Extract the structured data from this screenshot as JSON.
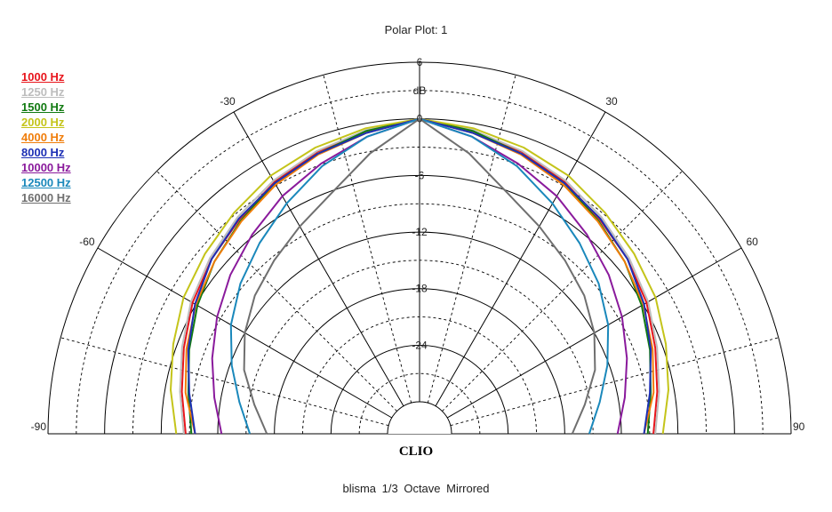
{
  "title": "Polar Plot: 1",
  "brand": "CLIO",
  "footer": "blisma   1/3 Octave   Mirrored",
  "chart_data": {
    "type": "polar",
    "title": "Polar Plot: 1",
    "r_unit": "dB",
    "r_ticks": [
      6,
      0,
      -6,
      -12,
      -18,
      -24
    ],
    "r_range": [
      -30,
      6
    ],
    "angle_ticks": [
      -90,
      -60,
      -30,
      30,
      60,
      90
    ],
    "angle_range": [
      -90,
      90
    ],
    "mirrored": true,
    "grid": true,
    "legend_position": "top-left",
    "angles": [
      0,
      10,
      20,
      30,
      40,
      50,
      60,
      70,
      80,
      90
    ],
    "series": [
      {
        "name": "1000 Hz",
        "color": "#e8141b",
        "values": [
          0,
          -0.8,
          -1.6,
          -2.6,
          -3.7,
          -4.6,
          -5.6,
          -6.8,
          -7.8,
          -8.6
        ]
      },
      {
        "name": "1250 Hz",
        "color": "#bdbdbd",
        "values": [
          0,
          -0.7,
          -1.5,
          -2.4,
          -3.4,
          -4.4,
          -5.4,
          -6.6,
          -7.6,
          -8.4
        ]
      },
      {
        "name": "1500 Hz",
        "color": "#117a11",
        "values": [
          0,
          -0.8,
          -1.8,
          -2.7,
          -3.9,
          -5.0,
          -6.2,
          -7.4,
          -8.5,
          -9.2
        ]
      },
      {
        "name": "2000 Hz",
        "color": "#c4c41a",
        "values": [
          0,
          -0.5,
          -1.1,
          -1.8,
          -2.8,
          -3.7,
          -4.5,
          -5.6,
          -6.6,
          -7.6
        ]
      },
      {
        "name": "4000 Hz",
        "color": "#f07d0a",
        "values": [
          0,
          -1.0,
          -1.9,
          -2.9,
          -4.0,
          -5.0,
          -6.0,
          -7.1,
          -8.2,
          -9.6
        ]
      },
      {
        "name": "8000 Hz",
        "color": "#1c2fb5",
        "values": [
          0,
          -1.0,
          -1.8,
          -2.7,
          -3.6,
          -4.6,
          -5.9,
          -7.3,
          -8.6,
          -9.6
        ]
      },
      {
        "name": "10000 Hz",
        "color": "#8a1a9c",
        "values": [
          0,
          -1.4,
          -2.9,
          -4.3,
          -5.8,
          -7.2,
          -8.6,
          -10.0,
          -11.3,
          -12.4
        ]
      },
      {
        "name": "12500 Hz",
        "color": "#1a88bb",
        "values": [
          0,
          -1.4,
          -3.2,
          -5.2,
          -7.0,
          -8.6,
          -10.3,
          -12.2,
          -14.0,
          -15.4
        ]
      },
      {
        "name": "16000 Hz",
        "color": "#6f6f6f",
        "values": [
          0,
          -3.2,
          -6.2,
          -8.0,
          -9.4,
          -10.6,
          -12.0,
          -13.6,
          -15.6,
          -17.2
        ]
      }
    ]
  }
}
